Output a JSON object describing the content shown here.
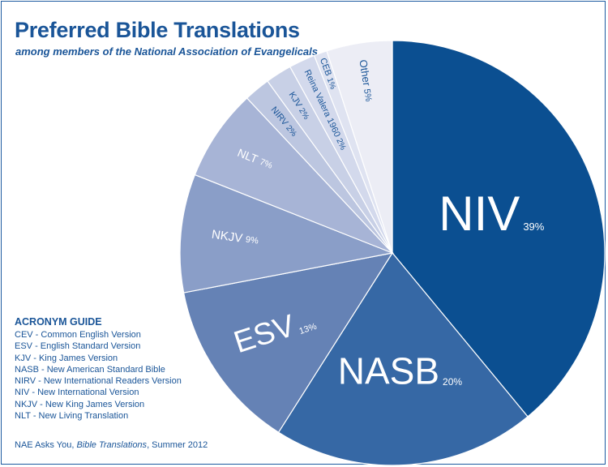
{
  "chart_data": {
    "type": "pie",
    "title": "Preferred Bible Translations",
    "subtitle": "among members of the National Association of Evangelicals",
    "slices": [
      {
        "label": "NIV",
        "value": 39,
        "value_label": "39%",
        "color": "#0b4f91",
        "text_color": "#ffffff"
      },
      {
        "label": "NASB",
        "value": 20,
        "value_label": "20%",
        "color": "#3668a5",
        "text_color": "#ffffff"
      },
      {
        "label": "ESV",
        "value": 13,
        "value_label": "13%",
        "color": "#6582b5",
        "text_color": "#ffffff"
      },
      {
        "label": "NKJV",
        "value": 9,
        "value_label": "9%",
        "color": "#8a9ec8",
        "text_color": "#ffffff"
      },
      {
        "label": "NLT",
        "value": 7,
        "value_label": "7%",
        "color": "#a7b4d6",
        "text_color": "#ffffff"
      },
      {
        "label": "NIRV",
        "value": 2,
        "value_label": "2%",
        "color": "#bcc6e0",
        "text_color": "#1a5598"
      },
      {
        "label": "KJV",
        "value": 2,
        "value_label": "2%",
        "color": "#c8d0e6",
        "text_color": "#1a5598"
      },
      {
        "label": "Reina Valera 1960",
        "value": 2,
        "value_label": "2%",
        "color": "#d3d9ec",
        "text_color": "#1a5598"
      },
      {
        "label": "CEB",
        "value": 1,
        "value_label": "1%",
        "color": "#dfe3f1",
        "text_color": "#1a5598"
      },
      {
        "label": "Other",
        "value": 5,
        "value_label": "5%",
        "color": "#ecedf5",
        "text_color": "#1a5598"
      }
    ]
  },
  "guide": {
    "title": "ACRONYM GUIDE",
    "items": [
      "CEV - Common English Version",
      "ESV - English Standard Version",
      "KJV - King James Version",
      "NASB - New American Standard Bible",
      "NIRV - New International Readers Version",
      "NIV - New International Version",
      "NKJV - New King James Version",
      "NLT - New Living Translation"
    ]
  },
  "source": {
    "prefix": "NAE Asks You, ",
    "publication": "Bible Translations",
    "suffix": ", Summer 2012"
  }
}
